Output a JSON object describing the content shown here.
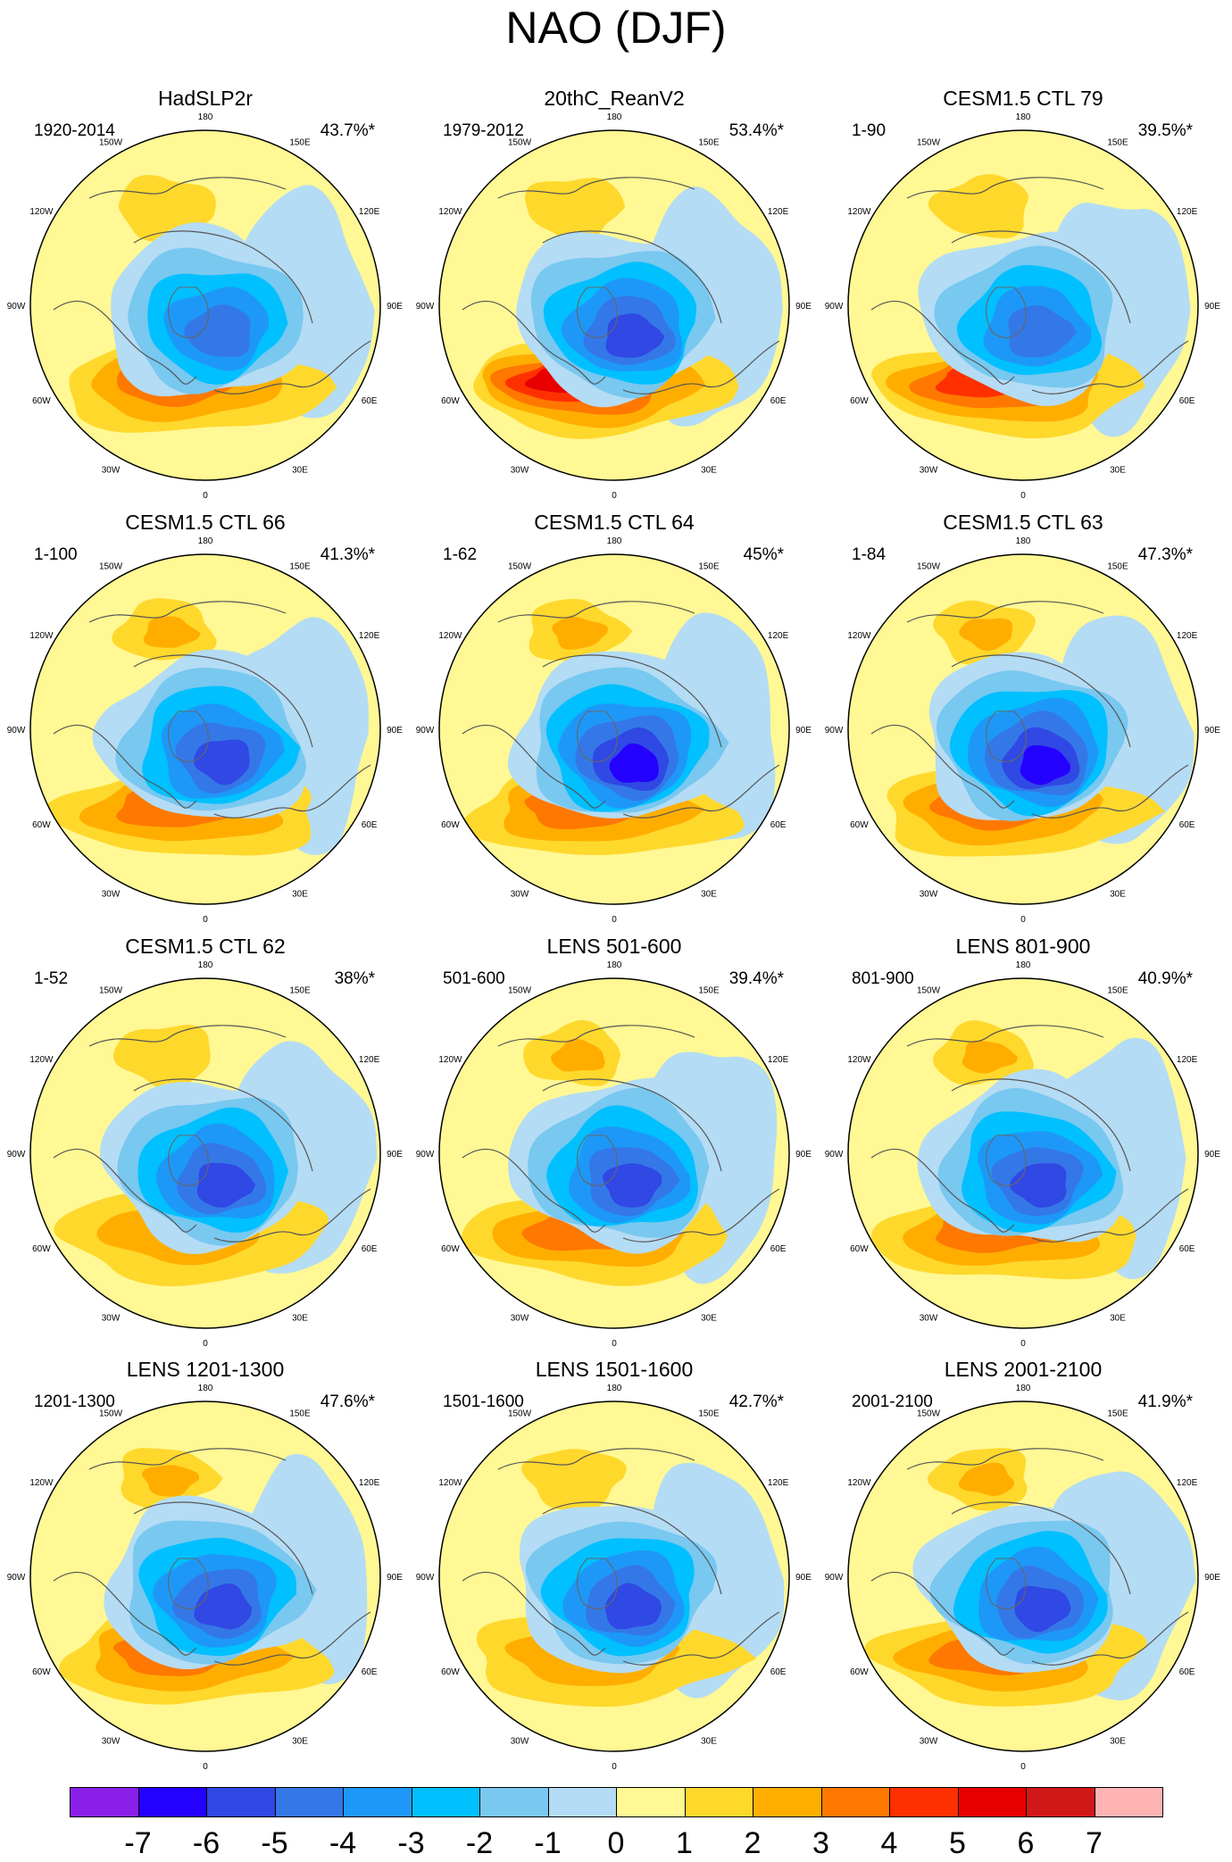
{
  "title": "NAO (DJF)",
  "chart_data": {
    "type": "polar-stereographic contour maps (12 panels) with shared colorbar",
    "title": "NAO (DJF)",
    "longitude_labels": [
      "180",
      "150E",
      "120E",
      "90E",
      "60E",
      "30E",
      "0",
      "30W",
      "60W",
      "90W",
      "120W",
      "150W"
    ],
    "panels": [
      {
        "title": "HadSLP2r",
        "years": "1920-2014",
        "variance": "43.7%*",
        "min_level": -5,
        "max_level": 3
      },
      {
        "title": "20thC_ReanV2",
        "years": "1979-2012",
        "variance": "53.4%*",
        "min_level": -6,
        "max_level": 5
      },
      {
        "title": "CESM1.5 CTL 79",
        "years": "1-90",
        "variance": "39.5%*",
        "min_level": -5,
        "max_level": 4
      },
      {
        "title": "CESM1.5 CTL 66",
        "years": "1-100",
        "variance": "41.3%*",
        "min_level": -6,
        "max_level": 3
      },
      {
        "title": "CESM1.5 CTL 64",
        "years": "1-62",
        "variance": "45%*",
        "min_level": -7,
        "max_level": 3
      },
      {
        "title": "CESM1.5 CTL 63",
        "years": "1-84",
        "variance": "47.3%*",
        "min_level": -7,
        "max_level": 3
      },
      {
        "title": "CESM1.5 CTL 62",
        "years": "1-52",
        "variance": "38%*",
        "min_level": -6,
        "max_level": 2
      },
      {
        "title": "LENS 501-600",
        "years": "501-600",
        "variance": "39.4%*",
        "min_level": -6,
        "max_level": 3
      },
      {
        "title": "LENS 801-900",
        "years": "801-900",
        "variance": "40.9%*",
        "min_level": -6,
        "max_level": 3
      },
      {
        "title": "LENS 1201-1300",
        "years": "1201-1300",
        "variance": "47.6%*",
        "min_level": -6,
        "max_level": 3
      },
      {
        "title": "LENS 1501-1600",
        "years": "1501-1600",
        "variance": "42.7%*",
        "min_level": -6,
        "max_level": 2
      },
      {
        "title": "LENS 2001-2100",
        "years": "2001-2100",
        "variance": "41.9%*",
        "min_level": -6,
        "max_level": 3
      }
    ],
    "colorbar": {
      "labels": [
        "-7",
        "-6",
        "-5",
        "-4",
        "-3",
        "-2",
        "-1",
        "0",
        "1",
        "2",
        "3",
        "4",
        "5",
        "6",
        "7"
      ],
      "colors": [
        "#8a20e8",
        "#2400ff",
        "#3048e4",
        "#3478e8",
        "#1e98f8",
        "#00c0ff",
        "#78c8f0",
        "#b4dcf4",
        "#fff894",
        "#ffd82c",
        "#ffae00",
        "#ff7800",
        "#ff3000",
        "#e80000",
        "#d01818",
        "#ffb4b4"
      ]
    }
  }
}
